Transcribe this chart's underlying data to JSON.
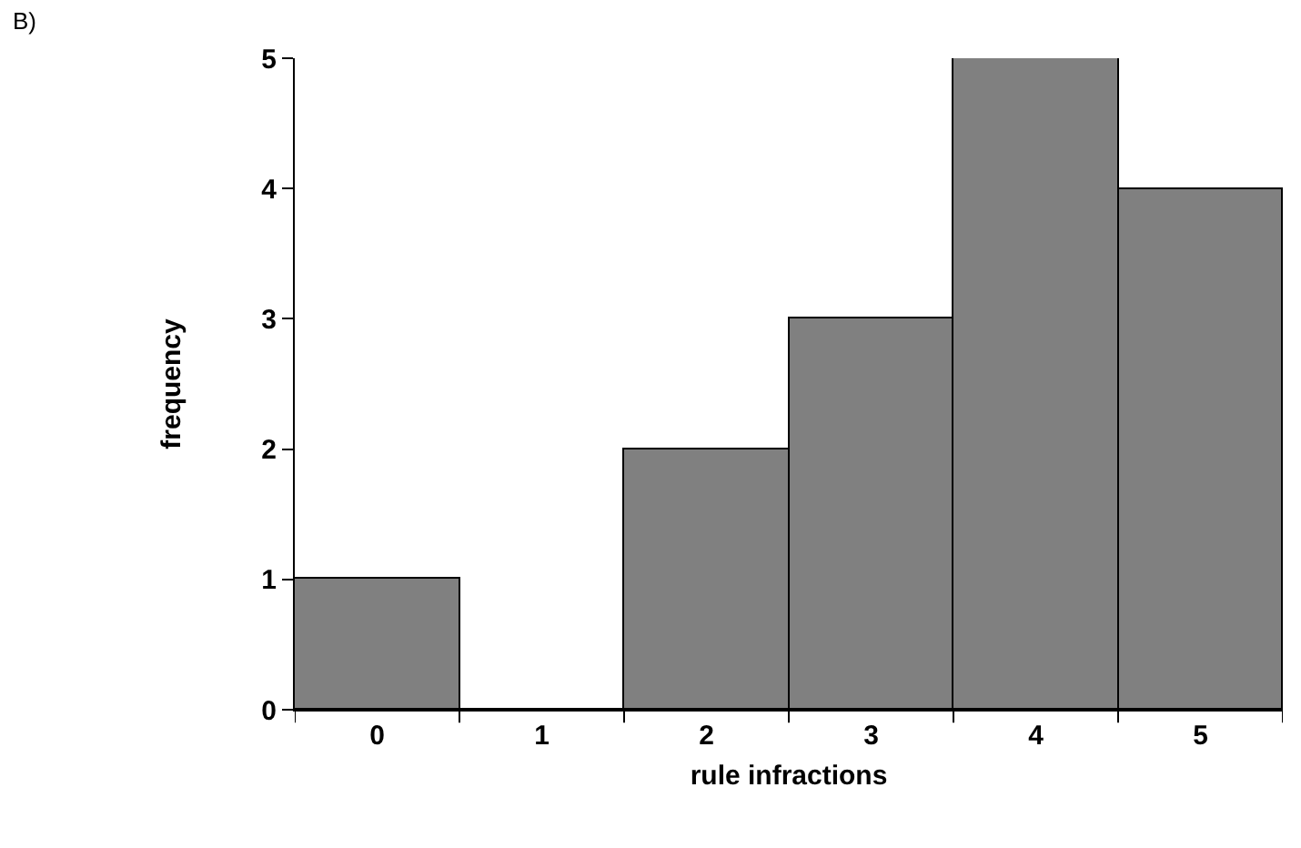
{
  "chart_data": {
    "type": "bar",
    "annotations": [
      "B)"
    ],
    "xlabel": "rule infractions",
    "ylabel": "frequency",
    "categories": [
      "0",
      "1",
      "2",
      "3",
      "4",
      "5"
    ],
    "values": [
      1,
      0,
      2,
      3,
      5,
      4
    ],
    "color": "#808080",
    "ylim": [
      0,
      5
    ],
    "yticks": [
      0,
      1,
      2,
      3,
      4,
      5
    ],
    "grid": false,
    "legend": false
  }
}
